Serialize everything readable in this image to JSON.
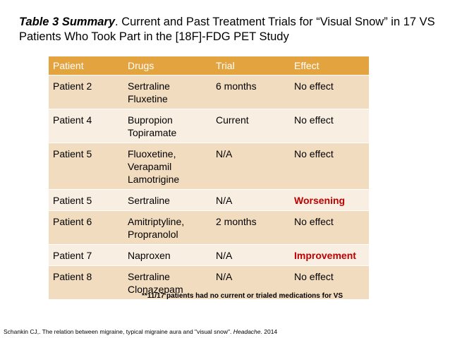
{
  "title": {
    "bold_italic": "Table 3 Summary",
    "rest": ". Current and Past Treatment Trials for “Visual Snow” in 17 VS Patients Who Took Part in the [18F]-FDG PET Study"
  },
  "table": {
    "headers": [
      "Patient",
      "Drugs",
      "Trial",
      "Effect"
    ],
    "rows": [
      {
        "patient": "Patient 2",
        "drugs": [
          "Sertraline",
          "Fluxetine"
        ],
        "trial": "6 months",
        "effect": "No effect"
      },
      {
        "patient": "Patient 4",
        "drugs": [
          "Bupropion",
          "Topiramate"
        ],
        "trial": "Current",
        "effect": "No effect"
      },
      {
        "patient": "Patient 5",
        "drugs": [
          "Fluoxetine,",
          "Verapamil",
          "Lamotrigine"
        ],
        "trial": "N/A",
        "effect": "No effect"
      },
      {
        "patient": "Patient 5",
        "drugs": [
          "Sertraline"
        ],
        "trial": "N/A",
        "effect": "Worsening"
      },
      {
        "patient": "Patient 6",
        "drugs": [
          "Amitriptyline,",
          "Propranolol"
        ],
        "trial": "2 months",
        "effect": "No effect"
      },
      {
        "patient": "Patient 7",
        "drugs": [
          "Naproxen"
        ],
        "trial": "N/A",
        "effect": "Improvement"
      },
      {
        "patient": "Patient 8",
        "drugs": [
          "Sertraline",
          "Clonazepam"
        ],
        "trial": "N/A",
        "effect": "No effect"
      }
    ]
  },
  "note": "**11/17 patients had no current or trialed medications for VS",
  "citation": {
    "text": "Schankin CJ,. The relation between migraine, typical migraine aura and \"visual snow\". ",
    "journal": "Headache",
    "year": ". 2014"
  },
  "colors": {
    "header_bg": "#e3a33e",
    "row_odd_bg": "#f2dcc0",
    "row_even_bg": "#f9eee2",
    "highlight_text": "#c00000"
  }
}
